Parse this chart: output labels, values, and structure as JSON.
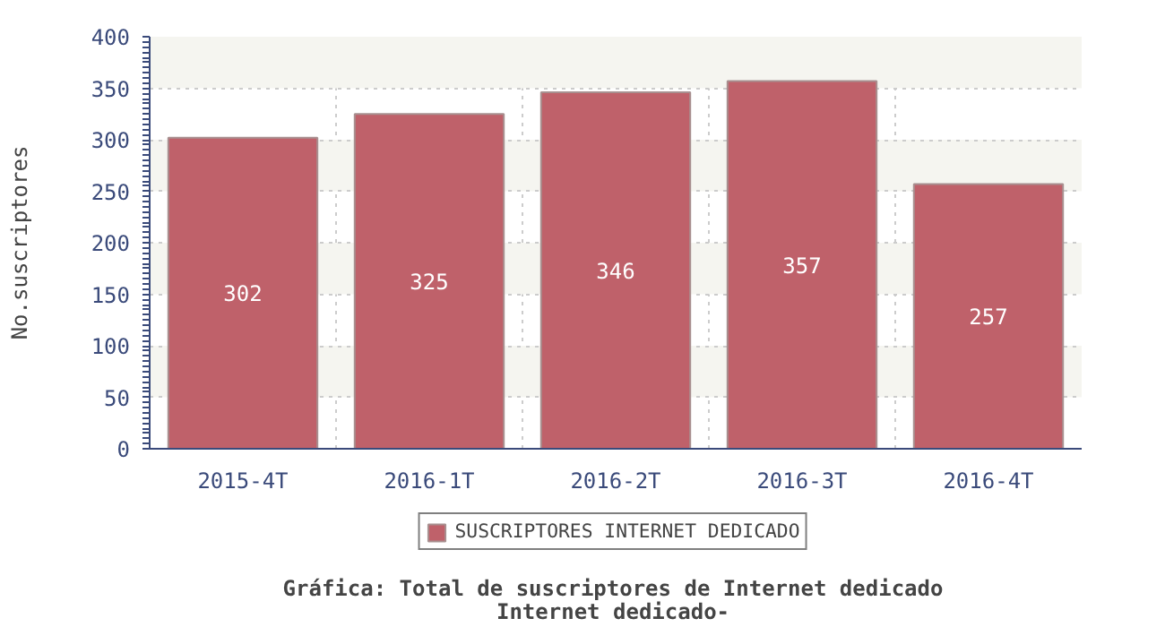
{
  "chart_data": {
    "type": "bar",
    "title": "Gráfica: Total de suscriptores de Internet dedicado",
    "subtitle": "Internet dedicado-",
    "ylabel": "No.suscriptores",
    "categories": [
      "2015-4T",
      "2016-1T",
      "2016-2T",
      "2016-3T",
      "2016-4T"
    ],
    "series": [
      {
        "name": "SUSCRIPTORES INTERNET DEDICADO",
        "color": "#bf616a",
        "values": [
          302,
          325,
          346,
          357,
          257
        ]
      }
    ],
    "ylim": [
      0,
      400
    ],
    "yticks": [
      0,
      50,
      100,
      150,
      200,
      250,
      300,
      350,
      400
    ],
    "grid": true,
    "legend": "bottom",
    "data_labels": true
  }
}
